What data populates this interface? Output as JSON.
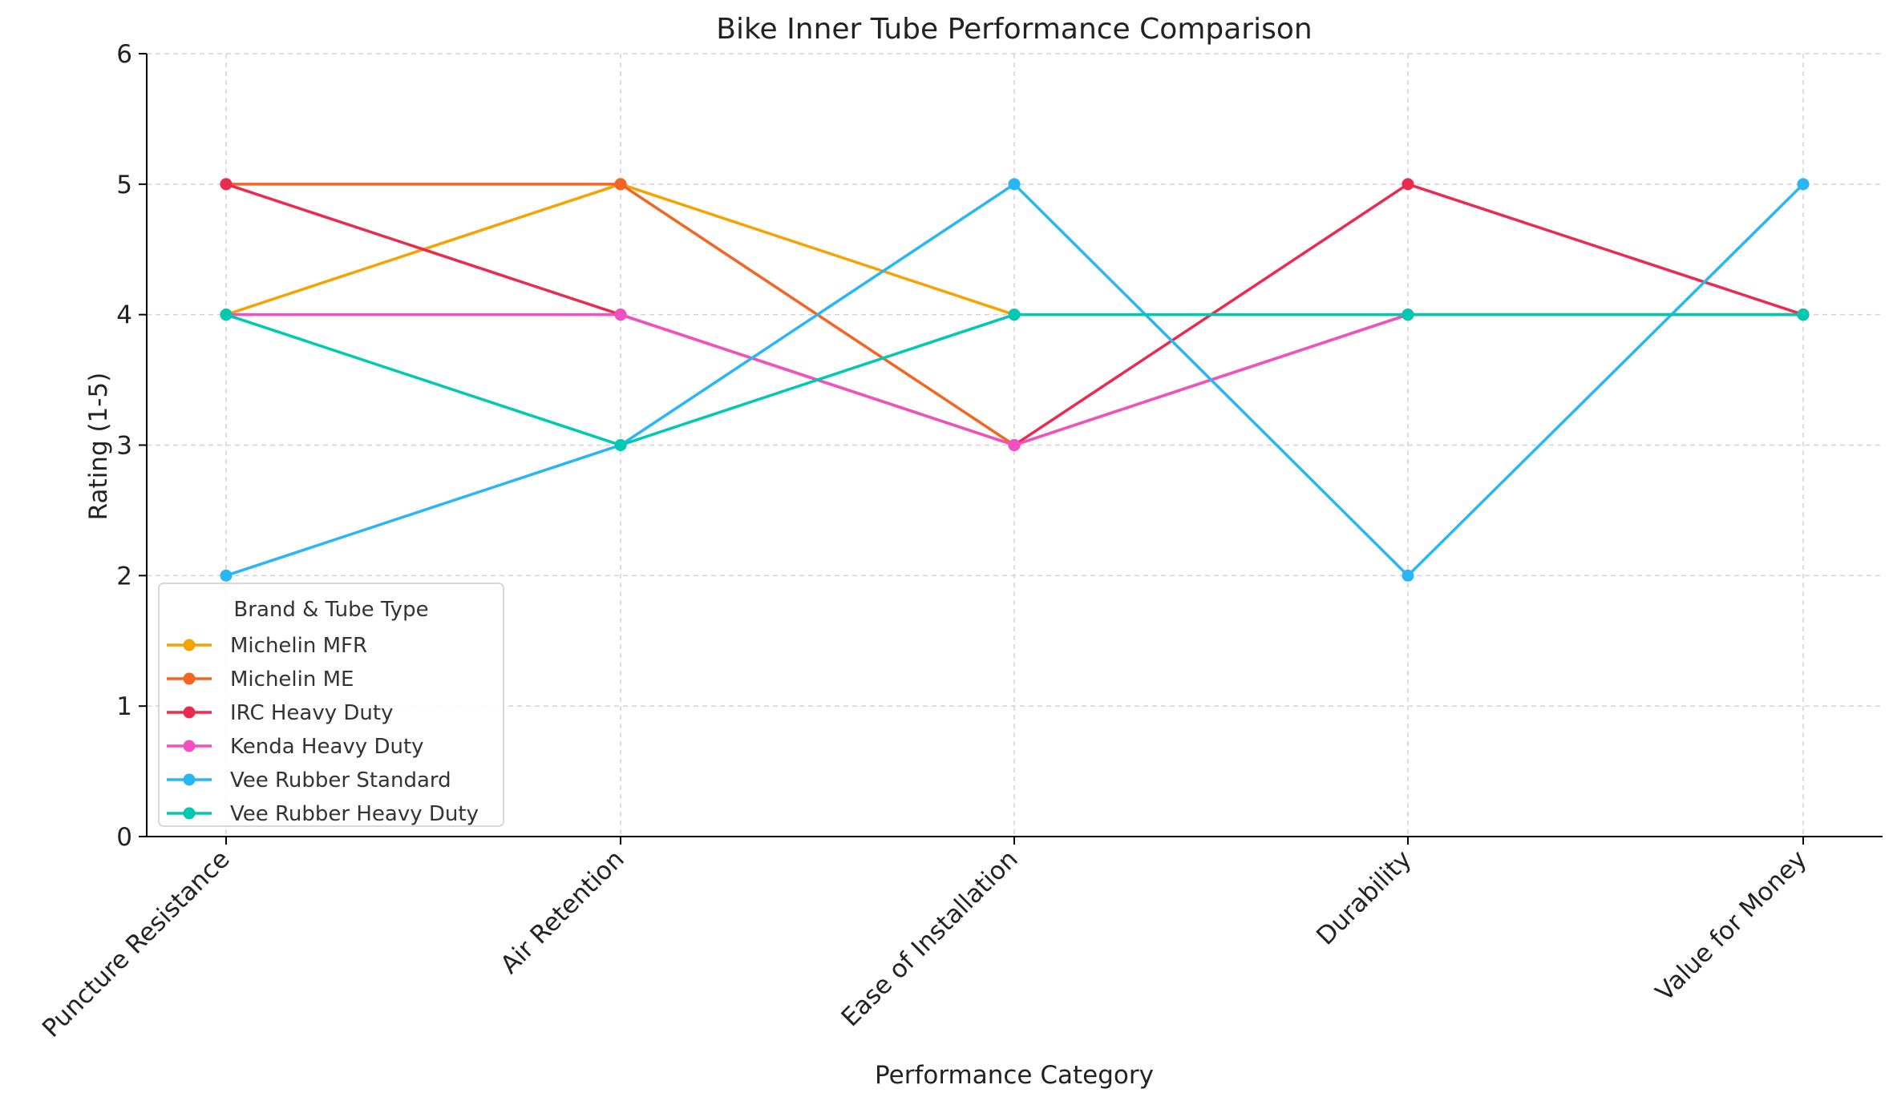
{
  "chart_data": {
    "type": "line",
    "title": "Bike Inner Tube Performance Comparison",
    "xlabel": "Performance Category",
    "ylabel": "Rating (1-5)",
    "ylim": [
      0,
      6
    ],
    "yticks": [
      "0",
      "1",
      "2",
      "3",
      "4",
      "5",
      "6"
    ],
    "categories": [
      "Puncture Resistance",
      "Air Retention",
      "Ease of Installation",
      "Durability",
      "Value for Money"
    ],
    "grid": true,
    "legend": {
      "title": "Brand & Tube Type",
      "placement": "lower-left"
    },
    "series": [
      {
        "name": "Michelin MFR",
        "color": "#f5a300",
        "values": [
          4,
          5,
          4,
          4,
          4
        ]
      },
      {
        "name": "Michelin ME",
        "color": "#f26522",
        "values": [
          5,
          5,
          3,
          4,
          4
        ]
      },
      {
        "name": "IRC Heavy Duty",
        "color": "#ea2a4f",
        "values": [
          5,
          4,
          3,
          5,
          4
        ]
      },
      {
        "name": "Kenda Heavy Duty",
        "color": "#f050c0",
        "values": [
          4,
          4,
          3,
          4,
          4
        ]
      },
      {
        "name": "Vee Rubber Standard",
        "color": "#28b6f6",
        "values": [
          2,
          3,
          5,
          2,
          5
        ]
      },
      {
        "name": "Vee Rubber Heavy Duty",
        "color": "#00c9b1",
        "values": [
          4,
          3,
          4,
          4,
          4
        ]
      }
    ]
  }
}
